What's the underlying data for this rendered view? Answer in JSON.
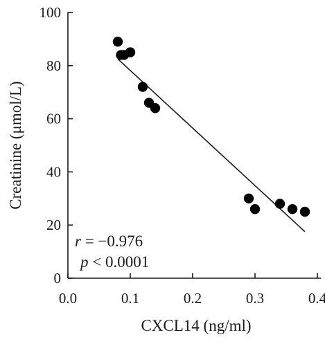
{
  "chart_data": {
    "type": "scatter",
    "xlabel": "CXCL14 (ng/ml)",
    "ylabel": "Creatinine (μmol/L)",
    "xlim": [
      0.0,
      0.4
    ],
    "ylim": [
      0,
      100
    ],
    "xticks": [
      "0.0",
      "0.1",
      "0.2",
      "0.3",
      "0.4"
    ],
    "yticks": [
      "0",
      "20",
      "40",
      "60",
      "80",
      "100"
    ],
    "grid": false,
    "points": [
      {
        "x": 0.08,
        "y": 89
      },
      {
        "x": 0.085,
        "y": 84
      },
      {
        "x": 0.09,
        "y": 84
      },
      {
        "x": 0.1,
        "y": 85
      },
      {
        "x": 0.12,
        "y": 72
      },
      {
        "x": 0.13,
        "y": 66
      },
      {
        "x": 0.14,
        "y": 64
      },
      {
        "x": 0.29,
        "y": 30
      },
      {
        "x": 0.3,
        "y": 26
      },
      {
        "x": 0.34,
        "y": 28
      },
      {
        "x": 0.36,
        "y": 26
      },
      {
        "x": 0.38,
        "y": 25
      }
    ],
    "fit_line": {
      "x": [
        0.08,
        0.38
      ],
      "y": [
        82.5,
        17.5
      ]
    },
    "annotations": {
      "r_symbol": "r",
      "r_value": " = −0.976",
      "p_symbol": "p",
      "p_value": " < 0.0001"
    },
    "colors": {
      "points": "#000000",
      "line": "#1a1a1a"
    }
  }
}
